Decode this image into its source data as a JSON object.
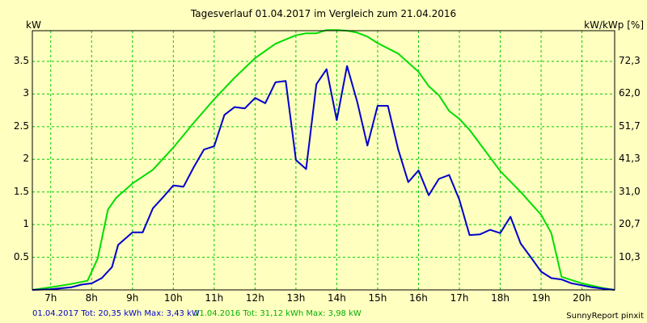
{
  "chart_data": {
    "type": "line",
    "title": "Tagesverlauf 01.04.2017 im Vergleich zum 21.04.2016",
    "ylabel_left": "kW",
    "ylabel_right": "kW/kWp [%]",
    "xlim": [
      6.55,
      20.8
    ],
    "ylim": [
      0,
      3.97
    ],
    "x_ticks": [
      {
        "x": 7,
        "label": "7h"
      },
      {
        "x": 8,
        "label": "8h"
      },
      {
        "x": 9,
        "label": "9h"
      },
      {
        "x": 10,
        "label": "10h"
      },
      {
        "x": 11,
        "label": "11h"
      },
      {
        "x": 12,
        "label": "12h"
      },
      {
        "x": 13,
        "label": "13h"
      },
      {
        "x": 14,
        "label": "14h"
      },
      {
        "x": 15,
        "label": "15h"
      },
      {
        "x": 16,
        "label": "16h"
      },
      {
        "x": 17,
        "label": "17h"
      },
      {
        "x": 18,
        "label": "18h"
      },
      {
        "x": 19,
        "label": "19h"
      },
      {
        "x": 20,
        "label": "20h"
      }
    ],
    "y_ticks_left": [
      {
        "y": 0.5,
        "label": "0.5"
      },
      {
        "y": 1,
        "label": "1"
      },
      {
        "y": 1.5,
        "label": "1.5"
      },
      {
        "y": 2,
        "label": "2"
      },
      {
        "y": 2.5,
        "label": "2.5"
      },
      {
        "y": 3,
        "label": "3"
      },
      {
        "y": 3.5,
        "label": "3.5"
      }
    ],
    "y_ticks_right": [
      {
        "y": 0.5,
        "label": "10,3"
      },
      {
        "y": 1,
        "label": "20,7"
      },
      {
        "y": 1.5,
        "label": "31,0"
      },
      {
        "y": 2,
        "label": "41,3"
      },
      {
        "y": 2.5,
        "label": "51,7"
      },
      {
        "y": 3,
        "label": "62,0"
      },
      {
        "y": 3.5,
        "label": "72,3"
      }
    ],
    "grid": true,
    "series": [
      {
        "name": "01.04.2017",
        "color": "#0000cc",
        "x": [
          6.55,
          7.0,
          7.5,
          7.75,
          8.0,
          8.25,
          8.5,
          8.65,
          9.0,
          9.25,
          9.5,
          9.75,
          10.0,
          10.25,
          10.5,
          10.75,
          11.0,
          11.25,
          11.5,
          11.75,
          12.0,
          12.25,
          12.5,
          12.75,
          13.0,
          13.25,
          13.5,
          13.75,
          14.0,
          14.25,
          14.5,
          14.75,
          15.0,
          15.25,
          15.5,
          15.75,
          16.0,
          16.25,
          16.5,
          16.75,
          17.0,
          17.25,
          17.5,
          17.75,
          18.0,
          18.25,
          18.5,
          18.75,
          19.0,
          19.25,
          19.5,
          19.75,
          20.0,
          20.25,
          20.5,
          20.8
        ],
        "values": [
          0,
          0.01,
          0.04,
          0.08,
          0.1,
          0.18,
          0.35,
          0.69,
          0.88,
          0.88,
          1.25,
          1.42,
          1.6,
          1.58,
          1.88,
          2.15,
          2.2,
          2.68,
          2.8,
          2.78,
          2.94,
          2.86,
          3.18,
          3.2,
          1.99,
          1.85,
          3.15,
          3.38,
          2.6,
          3.43,
          2.88,
          2.21,
          2.82,
          2.82,
          2.16,
          1.65,
          1.83,
          1.45,
          1.7,
          1.76,
          1.38,
          0.84,
          0.85,
          0.92,
          0.87,
          1.12,
          0.71,
          0.5,
          0.28,
          0.18,
          0.16,
          0.1,
          0.07,
          0.04,
          0.02,
          0.0
        ]
      },
      {
        "name": "21.04.2016",
        "color": "#00dd00",
        "x": [
          6.55,
          7.0,
          7.5,
          7.9,
          8.15,
          8.4,
          8.6,
          9.0,
          9.5,
          10.0,
          10.5,
          11.0,
          11.5,
          12.0,
          12.5,
          13.0,
          13.25,
          13.5,
          13.75,
          14.0,
          14.25,
          14.5,
          14.75,
          15.0,
          15.5,
          16.0,
          16.25,
          16.5,
          16.75,
          17.0,
          17.25,
          17.5,
          18.0,
          18.5,
          19.0,
          19.25,
          19.5,
          20.0,
          20.5,
          20.8
        ],
        "values": [
          0,
          0.04,
          0.09,
          0.14,
          0.48,
          1.23,
          1.41,
          1.63,
          1.84,
          2.18,
          2.56,
          2.92,
          3.25,
          3.55,
          3.77,
          3.9,
          3.93,
          3.93,
          3.98,
          3.98,
          3.97,
          3.94,
          3.88,
          3.78,
          3.62,
          3.34,
          3.12,
          2.98,
          2.74,
          2.62,
          2.45,
          2.24,
          1.82,
          1.5,
          1.15,
          0.87,
          0.2,
          0.1,
          0.03,
          0.0
        ]
      }
    ]
  },
  "footer": {
    "series1_text": "01.04.2017 Tot: 20,35 kWh Max: 3,43 kW",
    "series2_text": "21.04.2016 Tot: 31,12 kWh Max: 3,98 kW",
    "credit": "SunnyReport pinxit"
  },
  "colors": {
    "background": "#ffffc0",
    "grid": "#00cc00",
    "series1": "#0000cc",
    "series2": "#00dd00"
  }
}
